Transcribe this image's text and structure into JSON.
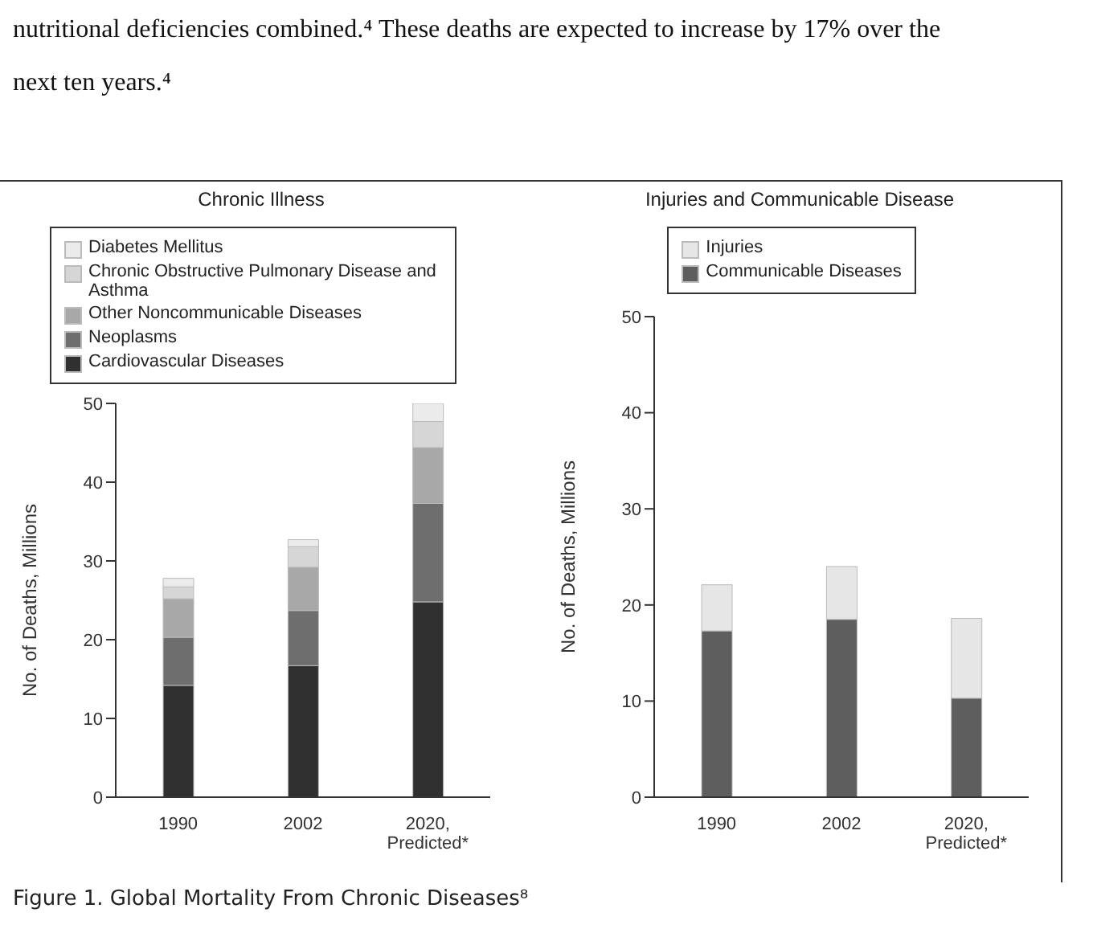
{
  "chart_data": [
    {
      "type": "bar",
      "stacked": true,
      "title": "Chronic Illness",
      "ylabel": "No. of Deaths, Millions",
      "categories": [
        "1990",
        "2002",
        "2020, Predicted*"
      ],
      "legend": "top",
      "ylim": [
        0,
        50
      ],
      "yticks": [
        0,
        10,
        20,
        30,
        40,
        50
      ],
      "series": [
        {
          "name": "Cardiovascular Diseases",
          "color": "#303030",
          "values": [
            14.2,
            16.7,
            24.8
          ]
        },
        {
          "name": "Neoplasms",
          "color": "#6e6e6e",
          "values": [
            6.1,
            7.0,
            12.5
          ]
        },
        {
          "name": "Other Noncommunicable Diseases",
          "color": "#a8a8a8",
          "values": [
            4.9,
            5.5,
            7.1
          ]
        },
        {
          "name": "Chronic Obstructive Pulmonary Disease and Asthma",
          "color": "#d6d6d6",
          "values": [
            1.5,
            2.6,
            3.3
          ]
        },
        {
          "name": "Diabetes Mellitus",
          "color": "#ebebeb",
          "values": [
            1.1,
            0.9,
            2.3
          ]
        }
      ],
      "annotations": [
        "nutritional deficiencies combined.⁴  These deaths are expected to increase by 17% over the next ten years.⁴",
        "Figure 1. Global Mortality From Chronic Diseases⁸"
      ]
    },
    {
      "type": "bar",
      "stacked": true,
      "title": "Injuries and Communicable Disease",
      "ylabel": "No. of Deaths, Millions",
      "categories": [
        "1990",
        "2002",
        "2020, Predicted*"
      ],
      "legend": "top",
      "ylim": [
        0,
        50
      ],
      "yticks": [
        0,
        10,
        20,
        30,
        40,
        50
      ],
      "series": [
        {
          "name": "Communicable Diseases",
          "color": "#5e5e5e",
          "values": [
            17.3,
            18.5,
            10.3
          ]
        },
        {
          "name": "Injuries",
          "color": "#e6e6e6",
          "values": [
            4.8,
            5.5,
            8.3
          ]
        }
      ]
    }
  ]
}
